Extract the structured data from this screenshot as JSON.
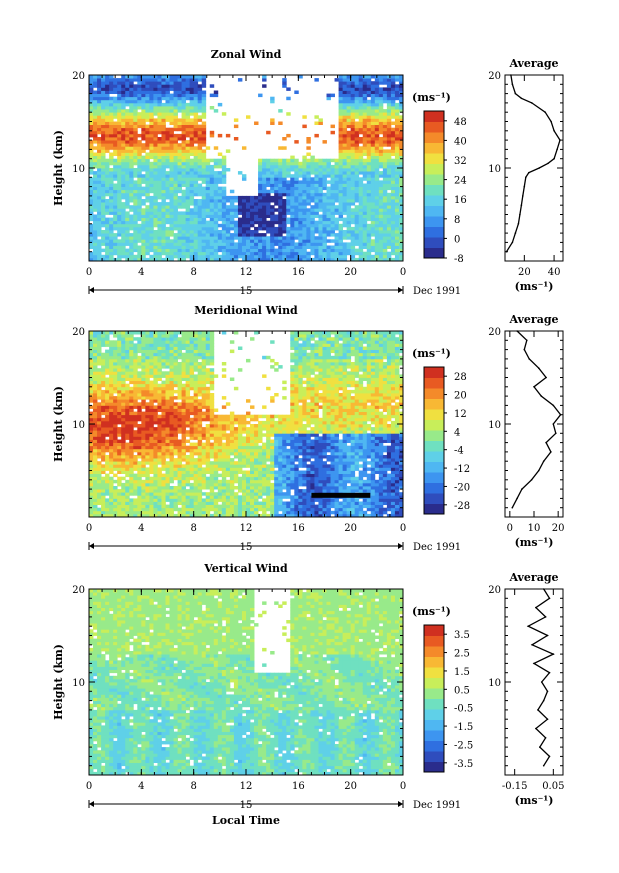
{
  "chart_data": [
    {
      "type": "heatmap",
      "title": "Zonal Wind",
      "ylabel": "Height (km)",
      "x_ticks": [
        "0",
        "4",
        "8",
        "12",
        "16",
        "20",
        "0"
      ],
      "y_ticks": [
        "10",
        "20"
      ],
      "ylim": [
        0,
        20
      ],
      "date_label": "Dec 1991",
      "day_label": "15",
      "colorbar": {
        "unit": "(ms⁻¹)",
        "ticks": [
          "48",
          "40",
          "32",
          "24",
          "16",
          "8",
          "0",
          "-8"
        ],
        "range": [
          -8,
          52
        ]
      },
      "profile": {
        "title": "Average",
        "xlabel": "(ms⁻¹)",
        "x_ticks": [
          "20",
          "40"
        ],
        "xlim": [
          7,
          46
        ],
        "y_ticks": [
          "10",
          "20"
        ],
        "points": [
          [
            8,
            1
          ],
          [
            12,
            2
          ],
          [
            14,
            3
          ],
          [
            16,
            4
          ],
          [
            17,
            5
          ],
          [
            18,
            6
          ],
          [
            19,
            7
          ],
          [
            20,
            8
          ],
          [
            21,
            9
          ],
          [
            23,
            9.5
          ],
          [
            30,
            10
          ],
          [
            36,
            10.5
          ],
          [
            40,
            11
          ],
          [
            42,
            12
          ],
          [
            44,
            13
          ],
          [
            40,
            14
          ],
          [
            38,
            15
          ],
          [
            34,
            16
          ],
          [
            25,
            17
          ],
          [
            18,
            17.5
          ],
          [
            14,
            18
          ],
          [
            12,
            19
          ],
          [
            11,
            20
          ]
        ]
      }
    },
    {
      "type": "heatmap",
      "title": "Meridional Wind",
      "ylabel": "Height (km)",
      "x_ticks": [
        "0",
        "4",
        "8",
        "12",
        "16",
        "20",
        "0"
      ],
      "y_ticks": [
        "10",
        "20"
      ],
      "ylim": [
        0,
        20
      ],
      "date_label": "Dec 1991",
      "day_label": "15",
      "colorbar": {
        "unit": "(ms⁻¹)",
        "ticks": [
          "28",
          "20",
          "12",
          "4",
          "-4",
          "-12",
          "-20",
          "-28"
        ],
        "range": [
          -32,
          32
        ]
      },
      "profile": {
        "title": "Average",
        "xlabel": "(ms⁻¹)",
        "x_ticks": [
          "0",
          "10",
          "20"
        ],
        "xlim": [
          -2,
          22
        ],
        "y_ticks": [
          "10",
          "20"
        ],
        "points": [
          [
            1,
            1
          ],
          [
            3,
            2
          ],
          [
            5,
            3
          ],
          [
            9,
            4
          ],
          [
            12,
            5
          ],
          [
            14,
            6
          ],
          [
            17,
            7
          ],
          [
            15,
            8
          ],
          [
            19,
            9
          ],
          [
            18,
            10
          ],
          [
            21,
            11
          ],
          [
            18,
            12
          ],
          [
            13,
            13
          ],
          [
            10,
            14
          ],
          [
            15,
            15
          ],
          [
            12,
            16
          ],
          [
            8,
            17
          ],
          [
            6,
            18
          ],
          [
            7,
            19
          ],
          [
            3,
            20
          ]
        ]
      }
    },
    {
      "type": "heatmap",
      "title": "Vertical Wind",
      "ylabel": "Height (km)",
      "xlabel": "Local Time",
      "x_ticks": [
        "0",
        "4",
        "8",
        "12",
        "16",
        "20",
        "0"
      ],
      "y_ticks": [
        "10",
        "20"
      ],
      "ylim": [
        0,
        20
      ],
      "date_label": "Dec 1991",
      "day_label": "15",
      "colorbar": {
        "unit": "(ms⁻¹)",
        "ticks": [
          "3.5",
          "2.5",
          "1.5",
          "0.5",
          "-0.5",
          "-1.5",
          "-2.5",
          "-3.5"
        ],
        "range": [
          -4,
          4
        ]
      },
      "profile": {
        "title": "Average",
        "xlabel": "(ms⁻¹)",
        "x_ticks": [
          "-0.15",
          "0.05"
        ],
        "xlim": [
          -0.2,
          0.1
        ],
        "y_ticks": [
          "10",
          "20"
        ],
        "points": [
          [
            0.0,
            1
          ],
          [
            0.03,
            2
          ],
          [
            -0.02,
            3
          ],
          [
            0.01,
            4
          ],
          [
            -0.04,
            5
          ],
          [
            0.02,
            6
          ],
          [
            -0.03,
            7
          ],
          [
            0.0,
            8
          ],
          [
            0.02,
            9
          ],
          [
            -0.01,
            10
          ],
          [
            0.03,
            11
          ],
          [
            -0.05,
            12
          ],
          [
            0.05,
            13
          ],
          [
            -0.06,
            14
          ],
          [
            0.02,
            15
          ],
          [
            -0.08,
            16
          ],
          [
            0.01,
            17
          ],
          [
            -0.04,
            18
          ],
          [
            0.03,
            19
          ],
          [
            0.0,
            20
          ]
        ]
      }
    }
  ]
}
